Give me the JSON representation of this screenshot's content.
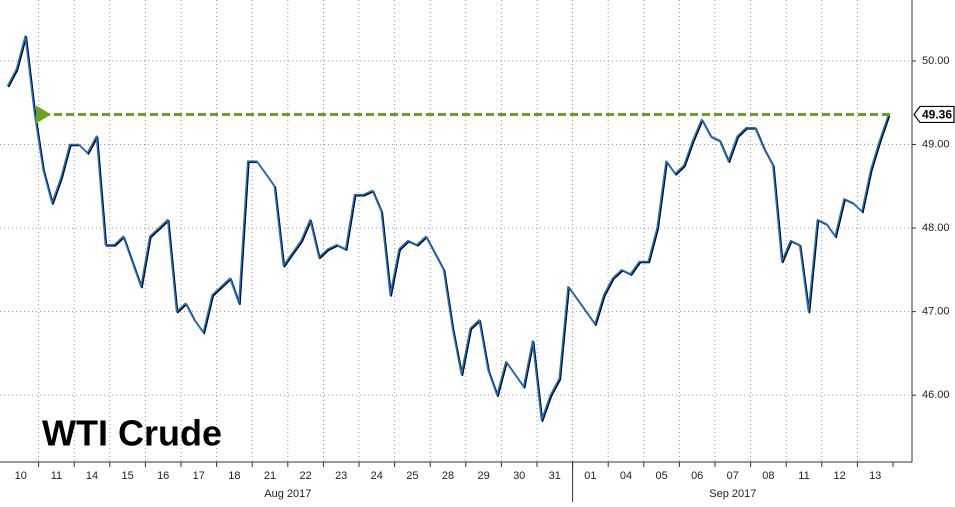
{
  "chart_data": {
    "type": "line",
    "annotation": "WTI Crude",
    "categories": [
      "10",
      "11",
      "14",
      "15",
      "16",
      "17",
      "18",
      "21",
      "22",
      "23",
      "24",
      "25",
      "28",
      "29",
      "30",
      "31",
      "01",
      "04",
      "05",
      "06",
      "07",
      "08",
      "11",
      "12",
      "13"
    ],
    "month_labels": [
      "Aug 2017",
      "Sep 2017"
    ],
    "series": [
      {
        "name": "WTI Crude",
        "color": "#1f6fc5",
        "values": [
          [
            49.7,
            49.9,
            50.3,
            49.4
          ],
          [
            48.7,
            48.3,
            48.6,
            49.0
          ],
          [
            49.0,
            48.9,
            49.1,
            47.8
          ],
          [
            47.8,
            47.9,
            47.6,
            47.3
          ],
          [
            47.9,
            48.0,
            48.1,
            47.0
          ],
          [
            47.1,
            46.9,
            46.75,
            47.2
          ],
          [
            47.3,
            47.4,
            47.1,
            48.8
          ],
          [
            48.8,
            48.65,
            48.5,
            47.55
          ],
          [
            47.7,
            47.85,
            48.1,
            47.65
          ],
          [
            47.75,
            47.8,
            47.75,
            48.4
          ],
          [
            48.4,
            48.45,
            48.2,
            47.2
          ],
          [
            47.75,
            47.85,
            47.8,
            47.9
          ],
          [
            47.7,
            47.5,
            46.8,
            46.25
          ],
          [
            46.8,
            46.9,
            46.3,
            46.0
          ],
          [
            46.4,
            46.25,
            46.1,
            46.65
          ],
          [
            45.7,
            46.0,
            46.2,
            47.3
          ],
          [
            47.15,
            47.0,
            46.85,
            47.2
          ],
          [
            47.4,
            47.5,
            47.45,
            47.6
          ],
          [
            47.6,
            48.0,
            48.8,
            48.65
          ],
          [
            48.75,
            49.05,
            49.3,
            49.1
          ],
          [
            49.05,
            48.8,
            49.1,
            49.2
          ],
          [
            49.2,
            48.95,
            48.75,
            47.6
          ],
          [
            47.85,
            47.8,
            47.0,
            48.1
          ],
          [
            48.05,
            47.9,
            48.35,
            48.3
          ],
          [
            48.2,
            48.7,
            49.05,
            49.36
          ]
        ]
      }
    ],
    "last_value": 49.36,
    "last_value_color": "#6aa121",
    "ylim": [
      45.2,
      50.73
    ],
    "yticks": [
      {
        "value": 46,
        "label": "46.00"
      },
      {
        "value": 47,
        "label": "47.00"
      },
      {
        "value": 48,
        "label": "48.00"
      },
      {
        "value": 49,
        "label": "49.00"
      },
      {
        "value": 50,
        "label": "50.00"
      }
    ],
    "grid": true
  }
}
